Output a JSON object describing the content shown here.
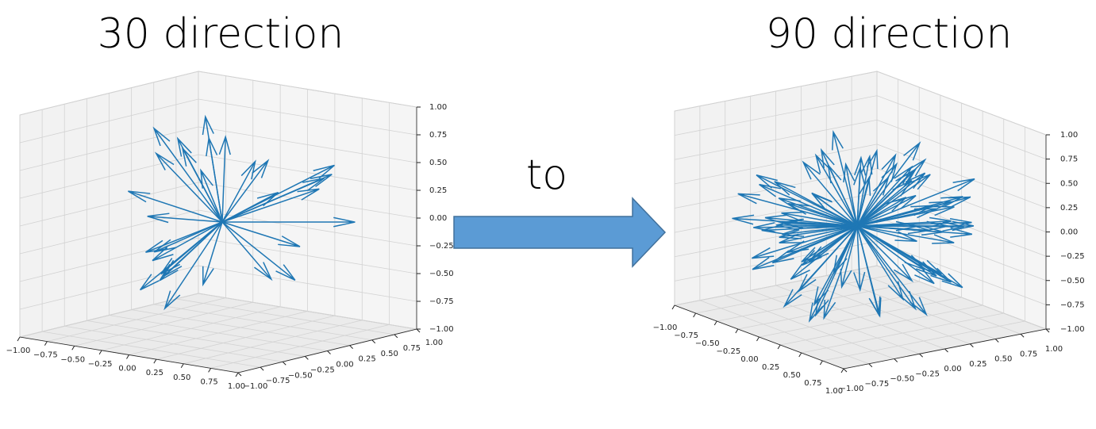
{
  "panels": [
    {
      "title": "30 direction",
      "x_ticks": [
        "−1.00",
        "−0.75",
        "−0.50",
        "−0.25",
        "0.00",
        "0.25",
        "0.50",
        "0.75",
        "1.00"
      ],
      "y_ticks": [
        "−1.00",
        "−0.75",
        "−0.50",
        "−0.25",
        "0.00",
        "0.25",
        "0.50",
        "0.75",
        "1.00"
      ],
      "z_ticks": [
        "−1.00",
        "−0.75",
        "−0.50",
        "−0.25",
        "0.00",
        "0.25",
        "0.50",
        "0.75",
        "1.00"
      ]
    },
    {
      "title": "90 direction",
      "x_ticks": [
        "−1.00",
        "−0.75",
        "−0.50",
        "−0.25",
        "0.00",
        "0.25",
        "0.50",
        "0.75",
        "1.00"
      ],
      "y_ticks": [
        "−1.00",
        "−0.75",
        "−0.50",
        "−0.25",
        "0.00",
        "0.25",
        "0.50",
        "0.75",
        "1.00"
      ],
      "z_ticks": [
        "−1.00",
        "−0.75",
        "−0.50",
        "−0.25",
        "0.00",
        "0.25",
        "0.50",
        "0.75",
        "1.00"
      ]
    }
  ],
  "connector": "to"
}
